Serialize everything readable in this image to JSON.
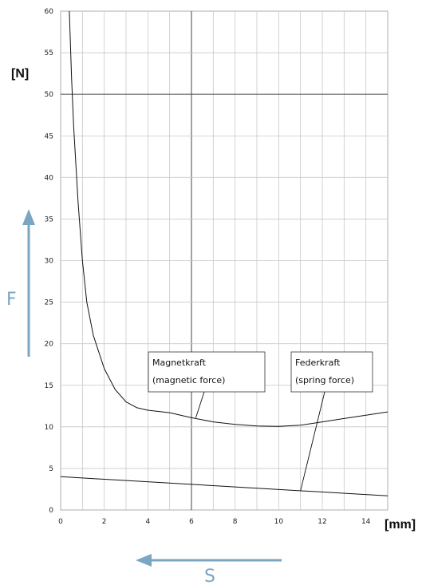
{
  "chart_data": {
    "type": "line",
    "xlim": [
      0,
      15
    ],
    "ylim": [
      0,
      60
    ],
    "x_ticks": [
      0,
      2,
      4,
      6,
      8,
      10,
      12,
      14
    ],
    "y_ticks": [
      0,
      5,
      10,
      15,
      20,
      25,
      30,
      35,
      40,
      45,
      50,
      55,
      60
    ],
    "x_unit": "[mm]",
    "y_unit": "[N]",
    "grid": true,
    "series": [
      {
        "key": "magnetic",
        "x": [
          0.4,
          0.5,
          0.6,
          0.8,
          1.0,
          1.2,
          1.5,
          2.0,
          2.5,
          3.0,
          3.5,
          4.0,
          5.0,
          6.0,
          7.0,
          8.0,
          9.0,
          10.0,
          11.0,
          12.0,
          13.0,
          14.0,
          15.0
        ],
        "y": [
          60,
          52,
          46,
          37,
          30,
          25,
          21,
          17,
          14.5,
          13,
          12.3,
          12,
          11.7,
          11.1,
          10.6,
          10.3,
          10.1,
          10.05,
          10.2,
          10.6,
          11.0,
          11.4,
          11.8
        ]
      },
      {
        "key": "spring",
        "x": [
          0,
          15
        ],
        "y": [
          4.0,
          1.7
        ]
      }
    ],
    "annotations": [
      {
        "key": "magnetic",
        "line1": "Magnetkraft",
        "line2": "(magnetic force)",
        "target": [
          6.2,
          11.1
        ]
      },
      {
        "key": "spring",
        "line1": "Federkraft",
        "line2": "(spring force)",
        "target": [
          11.0,
          2.3
        ]
      }
    ],
    "emphasis_lines": {
      "x": [
        6
      ],
      "y": [
        50
      ]
    }
  },
  "arrows": {
    "force_label": "F",
    "travel_label": "S",
    "color": "#7aa6c2"
  }
}
